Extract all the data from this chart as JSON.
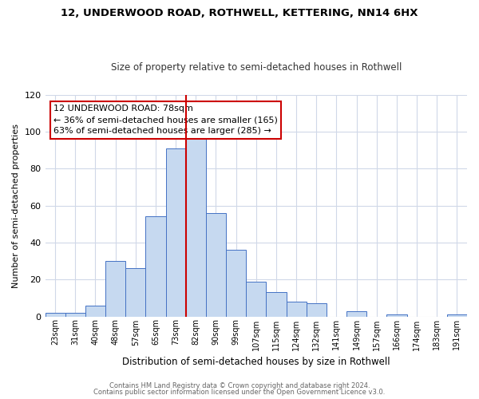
{
  "title": "12, UNDERWOOD ROAD, ROTHWELL, KETTERING, NN14 6HX",
  "subtitle": "Size of property relative to semi-detached houses in Rothwell",
  "xlabel": "Distribution of semi-detached houses by size in Rothwell",
  "ylabel": "Number of semi-detached properties",
  "bin_labels": [
    "23sqm",
    "31sqm",
    "40sqm",
    "48sqm",
    "57sqm",
    "65sqm",
    "73sqm",
    "82sqm",
    "90sqm",
    "99sqm",
    "107sqm",
    "115sqm",
    "124sqm",
    "132sqm",
    "141sqm",
    "149sqm",
    "157sqm",
    "166sqm",
    "174sqm",
    "183sqm",
    "191sqm"
  ],
  "bin_values": [
    2,
    2,
    6,
    30,
    26,
    54,
    91,
    97,
    56,
    36,
    19,
    13,
    8,
    7,
    0,
    3,
    0,
    1,
    0,
    0,
    1
  ],
  "bar_color": "#c6d9f0",
  "bar_edge_color": "#4472c4",
  "red_line_x": 6.5,
  "red_line_color": "#cc0000",
  "annotation_title": "12 UNDERWOOD ROAD: 78sqm",
  "annotation_line1": "← 36% of semi-detached houses are smaller (165)",
  "annotation_line2": "63% of semi-detached houses are larger (285) →",
  "annotation_box_color": "#ffffff",
  "annotation_box_edge": "#cc0000",
  "ylim": [
    0,
    120
  ],
  "yticks": [
    0,
    20,
    40,
    60,
    80,
    100,
    120
  ],
  "footer1": "Contains HM Land Registry data © Crown copyright and database right 2024.",
  "footer2": "Contains public sector information licensed under the Open Government Licence v3.0.",
  "background_color": "#ffffff",
  "grid_color": "#d0d8e8"
}
